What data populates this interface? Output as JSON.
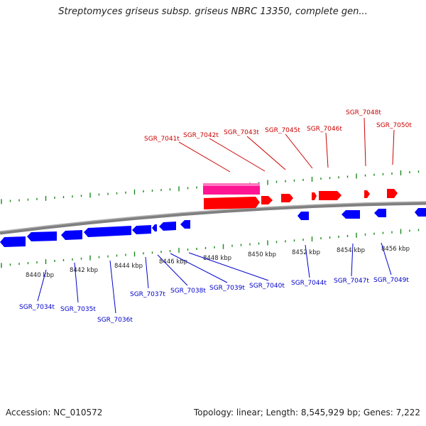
{
  "header": {
    "title": "Streptomyces griseus subsp. griseus NBRC 13350, complete gen..."
  },
  "footer": {
    "accession": "Accession: NC_010572",
    "summary": "Topology: linear; Length: 8,545,929 bp; Genes: 7,222"
  },
  "colors": {
    "backbone": "#808080",
    "forward_gene": "#ff0000",
    "reverse_gene": "#0000ff",
    "forward_selected": "#ff1493",
    "tick": "#1a8a1a",
    "label_forward": "#cc0000",
    "label_reverse": "#0000cc"
  },
  "scale_labels": [
    "8440 kbp",
    "8442 kbp",
    "8444 kbp",
    "8446 kbp",
    "8448 kbp",
    "8450 kbp",
    "8452 kbp",
    "8454 kbp",
    "8456 kbp"
  ],
  "forward_gene_labels": [
    "SGR_7041t",
    "SGR_7042t",
    "SGR_7043t",
    "SGR_7045t",
    "SGR_7046t",
    "SGR_7048t",
    "SGR_7050t"
  ],
  "reverse_gene_labels": [
    "SGR_7034t",
    "SGR_7035t",
    "SGR_7036t",
    "SGR_7037t",
    "SGR_7038t",
    "SGR_7039t",
    "SGR_7040t",
    "SGR_7044t",
    "SGR_7047t",
    "SGR_7049t"
  ]
}
